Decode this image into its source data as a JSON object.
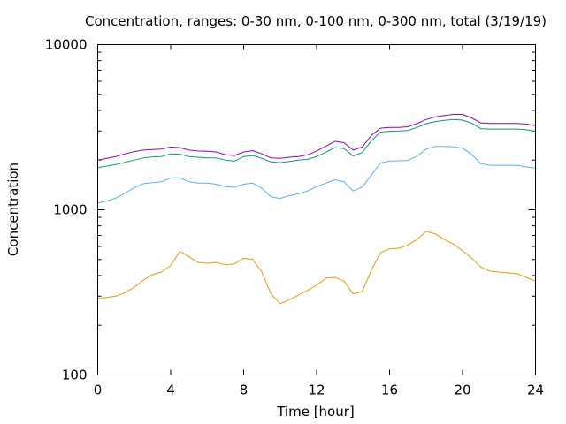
{
  "chart_data": {
    "type": "line",
    "title": "Concentration, ranges: 0-30 nm, 0-100 nm, 0-300 nm, total (3/19/19)",
    "xlabel": "Time [hour]",
    "ylabel": "Concentration",
    "xlim": [
      0,
      24
    ],
    "ylim": [
      100,
      10000
    ],
    "yscale": "log",
    "xticks": [
      0,
      4,
      8,
      12,
      16,
      20,
      24
    ],
    "xtick_labels": [
      "0",
      "4",
      "8",
      "12",
      "16",
      "20",
      "24"
    ],
    "yticks": [
      100,
      1000,
      10000
    ],
    "ytick_labels": [
      "100",
      "1000",
      "10000"
    ],
    "grid": false,
    "legend": "none",
    "x": [
      0,
      0.5,
      1,
      1.5,
      2,
      2.5,
      3,
      3.5,
      4,
      4.5,
      5,
      5.5,
      6,
      6.5,
      7,
      7.5,
      8,
      8.5,
      9,
      9.5,
      10,
      10.5,
      11,
      11.5,
      12,
      12.5,
      13,
      13.5,
      14,
      14.5,
      15,
      15.5,
      16,
      16.5,
      17,
      17.5,
      18,
      18.5,
      19,
      19.5,
      20,
      20.5,
      21,
      21.5,
      22,
      22.5,
      23,
      23.5,
      24
    ],
    "series": [
      {
        "color": "#e69f00",
        "values": [
          290,
          295,
          300,
          315,
          340,
          375,
          405,
          420,
          460,
          560,
          520,
          480,
          475,
          480,
          465,
          470,
          510,
          500,
          420,
          310,
          270,
          285,
          305,
          325,
          350,
          385,
          390,
          370,
          310,
          320,
          430,
          550,
          580,
          585,
          610,
          660,
          740,
          715,
          660,
          620,
          565,
          510,
          450,
          425,
          420,
          415,
          410,
          390,
          370
        ]
      },
      {
        "color": "#56b4e9",
        "values": [
          1100,
          1130,
          1180,
          1260,
          1360,
          1440,
          1460,
          1480,
          1560,
          1560,
          1480,
          1450,
          1450,
          1430,
          1380,
          1370,
          1430,
          1450,
          1350,
          1200,
          1170,
          1220,
          1250,
          1300,
          1380,
          1450,
          1520,
          1480,
          1300,
          1370,
          1620,
          1920,
          1970,
          1980,
          1990,
          2110,
          2330,
          2420,
          2420,
          2410,
          2360,
          2170,
          1900,
          1860,
          1860,
          1860,
          1860,
          1820,
          1790
        ]
      },
      {
        "color": "#009e73",
        "values": [
          1800,
          1840,
          1880,
          1940,
          2000,
          2060,
          2090,
          2100,
          2180,
          2170,
          2100,
          2080,
          2060,
          2060,
          2000,
          1970,
          2100,
          2130,
          2050,
          1950,
          1930,
          1960,
          2000,
          2020,
          2100,
          2230,
          2380,
          2350,
          2120,
          2220,
          2620,
          2950,
          2990,
          3000,
          3020,
          3150,
          3320,
          3420,
          3480,
          3520,
          3490,
          3350,
          3100,
          3080,
          3080,
          3080,
          3080,
          3050,
          2980
        ]
      },
      {
        "color": "#9400d3",
        "values": [
          2000,
          2050,
          2100,
          2180,
          2250,
          2300,
          2320,
          2330,
          2400,
          2380,
          2300,
          2270,
          2260,
          2240,
          2150,
          2130,
          2240,
          2280,
          2180,
          2060,
          2050,
          2080,
          2100,
          2150,
          2270,
          2420,
          2600,
          2550,
          2300,
          2400,
          2820,
          3120,
          3150,
          3150,
          3180,
          3320,
          3520,
          3650,
          3720,
          3780,
          3780,
          3600,
          3360,
          3330,
          3330,
          3330,
          3330,
          3300,
          3230
        ]
      }
    ]
  }
}
